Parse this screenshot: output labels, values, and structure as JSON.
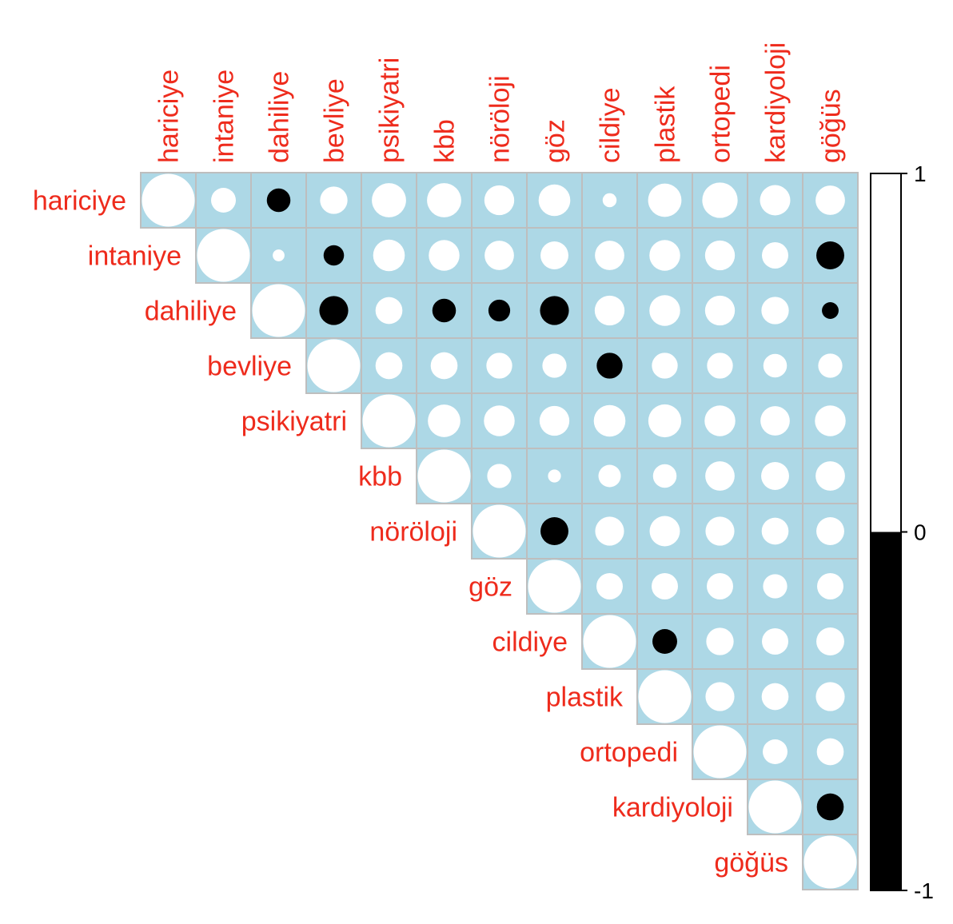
{
  "chart_data": {
    "type": "heatmap",
    "title": "",
    "variables": [
      "hariciye",
      "intaniye",
      "dahiliye",
      "bevliye",
      "psikiyatri",
      "kbb",
      "nöröloji",
      "göz",
      "cildiye",
      "plastik",
      "ortopedi",
      "kardiyoloji",
      "göğüs"
    ],
    "matrix": [
      [
        1.0,
        0.22,
        -0.2,
        0.27,
        0.42,
        0.42,
        0.32,
        0.36,
        0.07,
        0.4,
        0.45,
        0.33,
        0.31
      ],
      [
        null,
        1.0,
        0.05,
        -0.15,
        0.36,
        0.34,
        0.31,
        0.28,
        0.31,
        0.34,
        0.32,
        0.25,
        -0.28
      ],
      [
        null,
        null,
        1.0,
        -0.3,
        0.26,
        -0.2,
        -0.17,
        -0.3,
        0.32,
        0.34,
        0.32,
        0.27,
        -0.1
      ],
      [
        null,
        null,
        null,
        1.0,
        0.26,
        0.26,
        0.24,
        0.21,
        -0.24,
        0.24,
        0.24,
        0.2,
        0.21
      ],
      [
        null,
        null,
        null,
        null,
        1.0,
        0.38,
        0.34,
        0.32,
        0.36,
        0.39,
        0.34,
        0.31,
        0.34
      ],
      [
        null,
        null,
        null,
        null,
        null,
        1.0,
        0.21,
        0.06,
        0.18,
        0.2,
        0.31,
        0.28,
        0.31
      ],
      [
        null,
        null,
        null,
        null,
        null,
        null,
        1.0,
        -0.28,
        0.3,
        0.33,
        0.3,
        0.26,
        0.28
      ],
      [
        null,
        null,
        null,
        null,
        null,
        null,
        null,
        1.0,
        0.25,
        0.25,
        0.25,
        0.21,
        0.25
      ],
      [
        null,
        null,
        null,
        null,
        null,
        null,
        null,
        null,
        1.0,
        -0.22,
        0.27,
        0.25,
        0.28
      ],
      [
        null,
        null,
        null,
        null,
        null,
        null,
        null,
        null,
        null,
        1.0,
        0.3,
        0.26,
        0.3
      ],
      [
        null,
        null,
        null,
        null,
        null,
        null,
        null,
        null,
        null,
        null,
        1.0,
        0.22,
        0.26
      ],
      [
        null,
        null,
        null,
        null,
        null,
        null,
        null,
        null,
        null,
        null,
        null,
        1.0,
        -0.26
      ],
      [
        null,
        null,
        null,
        null,
        null,
        null,
        null,
        null,
        null,
        null,
        null,
        null,
        1.0
      ]
    ],
    "value_range": [
      -1,
      1
    ],
    "colorbar": {
      "ticks": [
        "1",
        "0",
        "-1"
      ],
      "tick_values": [
        1,
        0,
        -1
      ],
      "positive_color": "#ffffff",
      "negative_color": "#000000"
    },
    "colors": {
      "cell_background": "#add8e6",
      "cell_border": "#bebebe",
      "label_color": "#ee2b1c"
    },
    "grid": true,
    "layout_shape": "upper-triangle",
    "legend_placement": "right"
  }
}
